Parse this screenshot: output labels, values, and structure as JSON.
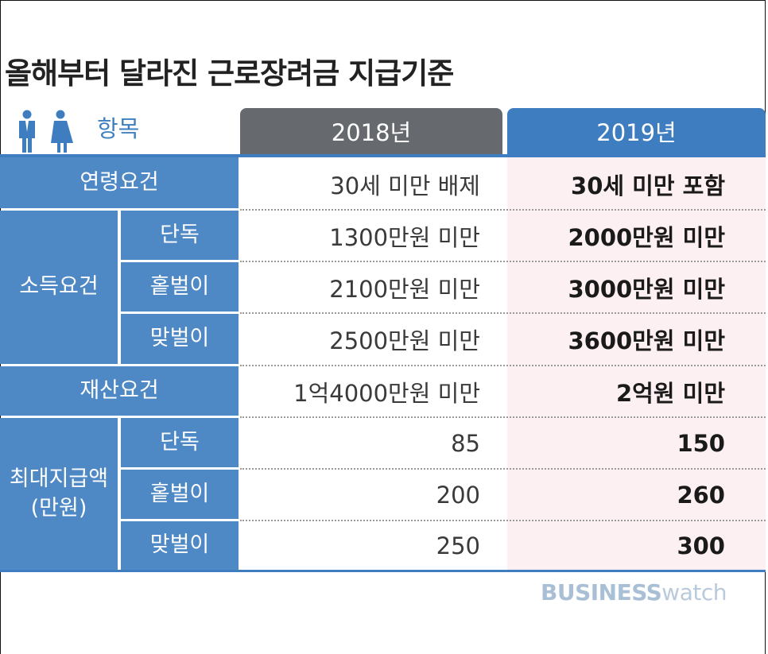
{
  "title": "올해부터 달라진 근로장려금 지급기준",
  "header": {
    "item_label": "항목",
    "col_2018": "2018년",
    "col_2019": "2019년",
    "icon": "man-woman-icon"
  },
  "rows": [
    {
      "group": "연령요건",
      "sub": "",
      "v2018": "30세 미만 배제",
      "v2019": "30세 미만 포함"
    },
    {
      "group": "소득요건",
      "sub": "단독",
      "v2018": "1300만원 미만",
      "v2019": "2000만원 미만"
    },
    {
      "group": "소득요건",
      "sub": "홑벌이",
      "v2018": "2100만원 미만",
      "v2019": "3000만원 미만"
    },
    {
      "group": "소득요건",
      "sub": "맞벌이",
      "v2018": "2500만원 미만",
      "v2019": "3600만원 미만"
    },
    {
      "group": "재산요건",
      "sub": "",
      "v2018": "1억4000만원 미만",
      "v2019": "2억원 미만"
    },
    {
      "group": "최대지급액 (만원)",
      "sub": "단독",
      "v2018": "85",
      "v2019": "150"
    },
    {
      "group": "최대지급액 (만원)",
      "sub": "홑벌이",
      "v2018": "200",
      "v2019": "260"
    },
    {
      "group": "최대지급액 (만원)",
      "sub": "맞벌이",
      "v2018": "250",
      "v2019": "300"
    }
  ],
  "groups": {
    "age": "연령요건",
    "income": "소득요건",
    "asset": "재산요건",
    "max_line1": "최대지급액",
    "max_line2": "(만원)"
  },
  "brand": {
    "part1": "BUSINESS",
    "part2": "watch"
  },
  "colors": {
    "header_2018": "#666a6e",
    "header_2019": "#3d7dc0",
    "label_bg": "#4f89c5",
    "col_2019_bg": "#fdf0f2"
  }
}
